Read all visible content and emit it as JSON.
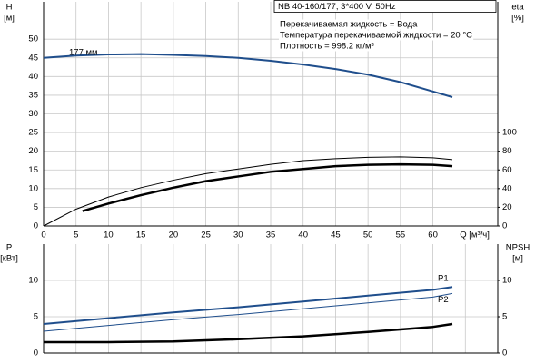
{
  "chart_data": [
    {
      "type": "line",
      "title": "NB 40-160/177, 3*400 V, 50Hz",
      "annotations": [
        "Перекачиваемая жидкость = Вода",
        "Температура перекачиваемой жидкости = 20 °C",
        "Плотность = 998.2 кг/м³"
      ],
      "xlabel": "Q [м³/ч]",
      "ylabel": [
        "H",
        "[м]"
      ],
      "y2label": [
        "eta",
        "[%]"
      ],
      "xlim": [
        0,
        70
      ],
      "xticks": [
        0,
        5,
        10,
        15,
        20,
        25,
        30,
        35,
        40,
        45,
        50,
        55,
        60
      ],
      "ylim": [
        0,
        60
      ],
      "yticks": [
        0,
        5,
        10,
        15,
        20,
        25,
        30,
        35,
        40,
        45,
        50
      ],
      "y2lim": [
        0,
        240
      ],
      "y2ticks": [
        0,
        20,
        40,
        60,
        80,
        100
      ],
      "grid": true,
      "show_xtick_labels": true,
      "name_at": "start",
      "series": [
        {
          "name": "177 мм",
          "color": "#1f4e8c",
          "width": 2,
          "x": [
            0,
            5,
            10,
            15,
            20,
            25,
            30,
            35,
            40,
            45,
            50,
            55,
            60,
            63
          ],
          "values": [
            45,
            45.6,
            45.9,
            46,
            45.8,
            45.5,
            45,
            44.2,
            43.2,
            42,
            40.5,
            38.5,
            36,
            34.5
          ]
        },
        {
          "color": "#000000",
          "width": 1,
          "axis": "y2",
          "x": [
            0,
            5,
            10,
            15,
            20,
            25,
            30,
            35,
            40,
            45,
            50,
            55,
            60,
            63
          ],
          "values": [
            0,
            18,
            31,
            41,
            49,
            56,
            61,
            66,
            70,
            72,
            73.5,
            74,
            73,
            71
          ]
        },
        {
          "color": "#000000",
          "width": 2.5,
          "axis": "y2",
          "x": [
            6,
            10,
            15,
            20,
            25,
            30,
            35,
            40,
            45,
            50,
            55,
            60,
            63
          ],
          "values": [
            16,
            24,
            33,
            41,
            48,
            53,
            58,
            61,
            64,
            65.5,
            66,
            65.5,
            64
          ]
        }
      ]
    },
    {
      "type": "line",
      "ylabel": [
        "P",
        "[кВт]"
      ],
      "y2label": [
        "NPSH",
        "[м]"
      ],
      "xlim": [
        0,
        70
      ],
      "xticks": [
        0,
        5,
        10,
        15,
        20,
        25,
        30,
        35,
        40,
        45,
        50,
        55,
        60,
        65
      ],
      "ylim": [
        0,
        15
      ],
      "yticks": [
        0,
        5,
        10
      ],
      "y2lim": [
        0,
        15
      ],
      "y2ticks": [
        0,
        5,
        10
      ],
      "grid": true,
      "show_xtick_labels": false,
      "name_at": "end",
      "series": [
        {
          "name": "P1",
          "color": "#1f4e8c",
          "width": 2,
          "x": [
            0,
            10,
            20,
            30,
            40,
            50,
            60,
            63
          ],
          "values": [
            4.0,
            4.8,
            5.6,
            6.3,
            7.1,
            7.9,
            8.7,
            9.1
          ]
        },
        {
          "name": "P2",
          "color": "#1f4e8c",
          "width": 1,
          "x": [
            0,
            10,
            20,
            30,
            40,
            50,
            60,
            63
          ],
          "values": [
            3.0,
            3.8,
            4.6,
            5.3,
            6.1,
            6.9,
            7.7,
            8.2
          ]
        },
        {
          "color": "#000000",
          "width": 2.5,
          "axis": "y2",
          "x": [
            0,
            10,
            20,
            30,
            40,
            50,
            60,
            63
          ],
          "values": [
            1.5,
            1.5,
            1.6,
            1.9,
            2.3,
            2.9,
            3.6,
            4.0
          ]
        }
      ]
    }
  ]
}
